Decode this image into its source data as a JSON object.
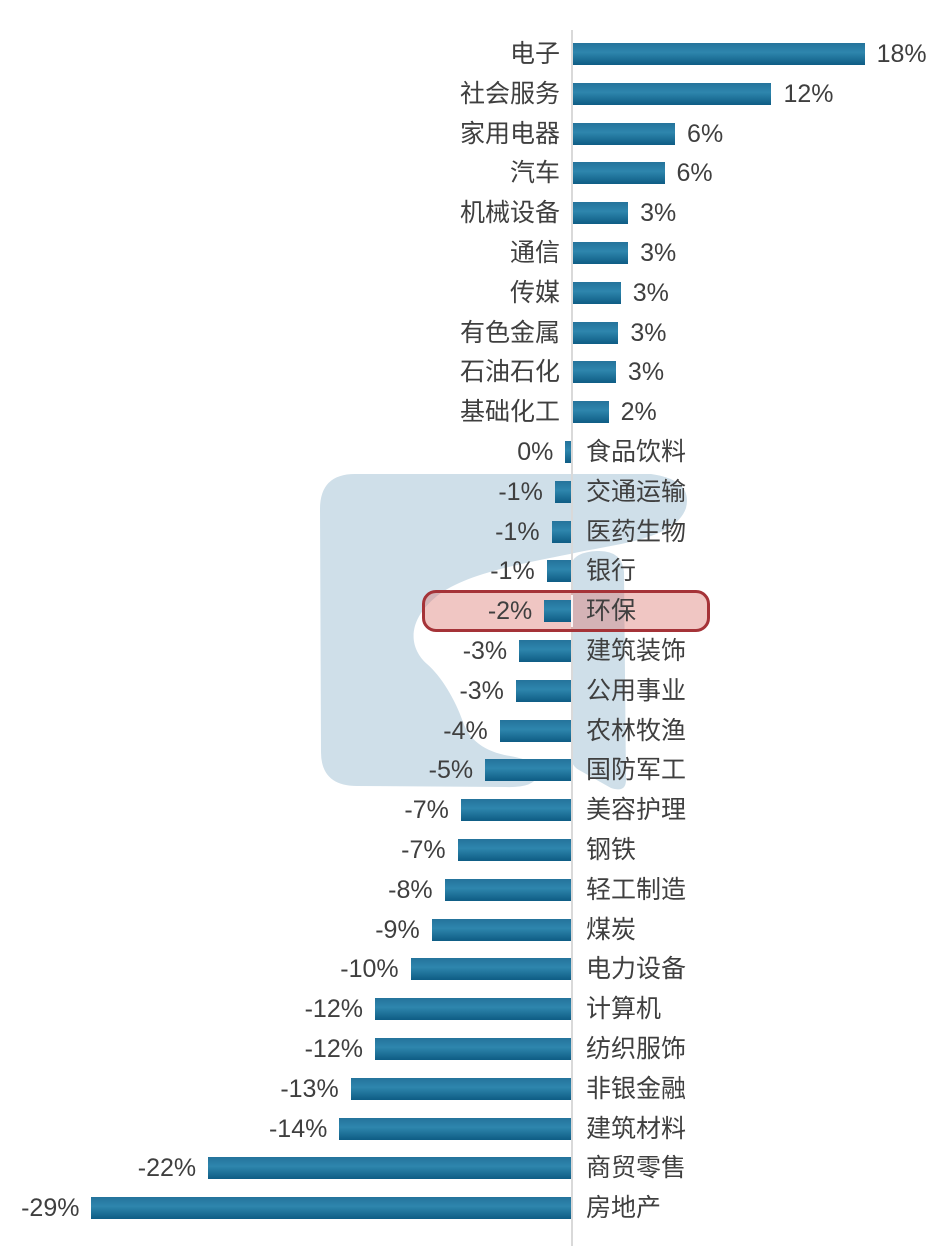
{
  "chart_data": {
    "type": "bar",
    "orientation": "horizontal",
    "title": "",
    "xlabel": "",
    "ylabel": "",
    "grid": false,
    "legend": false,
    "xlim": [
      -30,
      19
    ],
    "unit": "%",
    "categories": [
      "电子",
      "社会服务",
      "家用电器",
      "汽车",
      "机械设备",
      "通信",
      "传媒",
      "有色金属",
      "石油石化",
      "基础化工",
      "食品饮料",
      "交通运输",
      "医药生物",
      "银行",
      "环保",
      "建筑装饰",
      "公用事业",
      "农林牧渔",
      "国防军工",
      "美容护理",
      "钢铁",
      "轻工制造",
      "煤炭",
      "电力设备",
      "计算机",
      "纺织服饰",
      "非银金融",
      "建筑材料",
      "商贸零售",
      "房地产"
    ],
    "values": [
      18,
      12,
      6,
      6,
      3,
      3,
      3,
      3,
      3,
      2,
      0,
      -1,
      -1,
      -1,
      -2,
      -3,
      -3,
      -4,
      -5,
      -7,
      -7,
      -8,
      -9,
      -10,
      -12,
      -12,
      -13,
      -14,
      -22,
      -29
    ],
    "value_labels": [
      "18%",
      "12%",
      "6%",
      "6%",
      "3%",
      "3%",
      "3%",
      "3%",
      "3%",
      "2%",
      "0%",
      "-1%",
      "-1%",
      "-1%",
      "-2%",
      "-3%",
      "-3%",
      "-4%",
      "-5%",
      "-7%",
      "-7%",
      "-8%",
      "-9%",
      "-10%",
      "-12%",
      "-12%",
      "-13%",
      "-14%",
      "-22%",
      "-29%"
    ],
    "bar_lengths_pct": [
      18.0,
      12.25,
      6.3,
      5.65,
      3.4,
      3.4,
      2.95,
      2.8,
      2.65,
      2.2,
      -0.35,
      -1.0,
      -1.2,
      -1.5,
      -1.65,
      -3.2,
      -3.4,
      -4.4,
      -5.3,
      -6.8,
      -7.0,
      -7.8,
      -8.6,
      -9.9,
      -12.1,
      -12.1,
      -13.6,
      -14.3,
      -22.4,
      -29.6
    ],
    "highlight": {
      "category": "环保",
      "value_label": "-2%",
      "index": 14,
      "border_color": "#a53338",
      "fill_color": "rgba(219,118,113,0.42)"
    },
    "colors": {
      "bar_top": "#24739b",
      "bar_mid": "#2e86ad",
      "bar_bottom": "#0e5c84",
      "axis_line": "#d9d9d9",
      "text": "#3f3f3f",
      "watermark": "#cfdfe9"
    }
  },
  "watermark": {
    "name": "stylized-s-logo-watermark"
  }
}
